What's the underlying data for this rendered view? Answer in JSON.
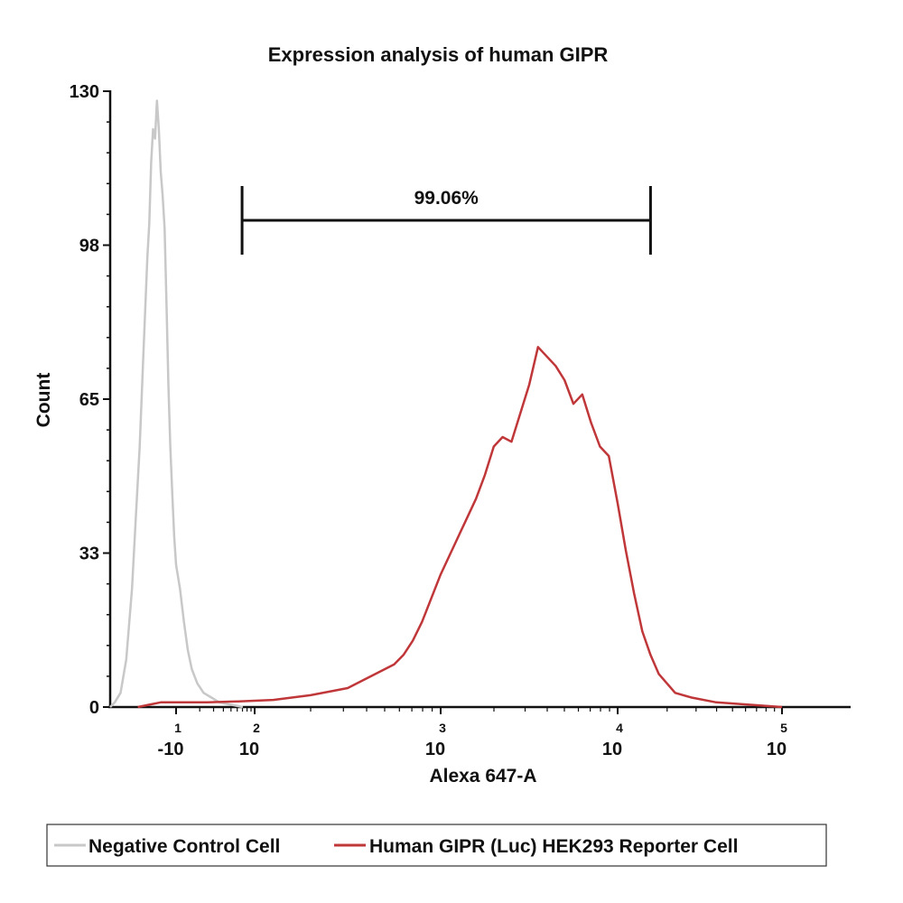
{
  "chart_data": {
    "type": "area",
    "title": "Expression analysis of human GIPR",
    "xlabel": "Alexa 647-A",
    "ylabel": "Count",
    "ylim": [
      0,
      130
    ],
    "y_ticks": [
      "0",
      "33",
      "65",
      "98",
      "130"
    ],
    "x_ticks": [
      {
        "base": "-10",
        "exp": "1"
      },
      {
        "base": "10",
        "exp": "2"
      },
      {
        "base": "10",
        "exp": "3"
      },
      {
        "base": "10",
        "exp": "4"
      },
      {
        "base": "10",
        "exp": "5"
      }
    ],
    "gate": {
      "label": "99.06%",
      "from_decade": 1.84,
      "to_decade": 4.2
    },
    "legend": {
      "position": "bottom",
      "items": [
        {
          "name": "Negative Control Cell",
          "color": "#c8c8c8"
        },
        {
          "name": "Human GIPR (Luc) HEK293 Reporter Cell",
          "color": "#c0373a"
        }
      ]
    },
    "series": [
      {
        "name": "Negative Control Cell",
        "color": "#c8c8c8",
        "points": [
          [
            -0.72,
            0
          ],
          [
            -0.6,
            1
          ],
          [
            -0.45,
            3
          ],
          [
            -0.3,
            10
          ],
          [
            -0.15,
            25
          ],
          [
            -0.05,
            40
          ],
          [
            0.05,
            55
          ],
          [
            0.15,
            75
          ],
          [
            0.25,
            95
          ],
          [
            0.3,
            102
          ],
          [
            0.35,
            115
          ],
          [
            0.4,
            122
          ],
          [
            0.45,
            120
          ],
          [
            0.5,
            128
          ],
          [
            0.55,
            122
          ],
          [
            0.6,
            113
          ],
          [
            0.65,
            108
          ],
          [
            0.7,
            101
          ],
          [
            0.75,
            85
          ],
          [
            0.8,
            68
          ],
          [
            0.85,
            55
          ],
          [
            0.9,
            45
          ],
          [
            0.95,
            36
          ],
          [
            1.0,
            30
          ],
          [
            1.05,
            25
          ],
          [
            1.1,
            18
          ],
          [
            1.15,
            12
          ],
          [
            1.2,
            8
          ],
          [
            1.27,
            5
          ],
          [
            1.35,
            3
          ],
          [
            1.45,
            2
          ],
          [
            1.55,
            1
          ],
          [
            1.7,
            0.5
          ],
          [
            1.85,
            0
          ]
        ]
      },
      {
        "name": "Human GIPR (Luc) HEK293 Reporter Cell",
        "color": "#c0373a",
        "points": [
          [
            0.0,
            0
          ],
          [
            0.3,
            0.5
          ],
          [
            0.6,
            1
          ],
          [
            1.0,
            1
          ],
          [
            1.4,
            1
          ],
          [
            1.8,
            1.2
          ],
          [
            2.1,
            1.5
          ],
          [
            2.3,
            2.5
          ],
          [
            2.5,
            4
          ],
          [
            2.6,
            6
          ],
          [
            2.7,
            8
          ],
          [
            2.75,
            9
          ],
          [
            2.8,
            11
          ],
          [
            2.85,
            14
          ],
          [
            2.9,
            18
          ],
          [
            2.95,
            23
          ],
          [
            3.0,
            28
          ],
          [
            3.05,
            32
          ],
          [
            3.1,
            36
          ],
          [
            3.15,
            40
          ],
          [
            3.2,
            44
          ],
          [
            3.25,
            49
          ],
          [
            3.3,
            55
          ],
          [
            3.35,
            57
          ],
          [
            3.4,
            56
          ],
          [
            3.45,
            62
          ],
          [
            3.5,
            68
          ],
          [
            3.55,
            76
          ],
          [
            3.6,
            74
          ],
          [
            3.65,
            72
          ],
          [
            3.7,
            69
          ],
          [
            3.75,
            64
          ],
          [
            3.8,
            66
          ],
          [
            3.85,
            60
          ],
          [
            3.9,
            55
          ],
          [
            3.95,
            53
          ],
          [
            4.0,
            43
          ],
          [
            4.05,
            33
          ],
          [
            4.1,
            24
          ],
          [
            4.15,
            16
          ],
          [
            4.2,
            11
          ],
          [
            4.25,
            7
          ],
          [
            4.3,
            5
          ],
          [
            4.35,
            3
          ],
          [
            4.45,
            2
          ],
          [
            4.6,
            1
          ],
          [
            4.8,
            0.5
          ],
          [
            5.0,
            0
          ]
        ]
      }
    ]
  }
}
